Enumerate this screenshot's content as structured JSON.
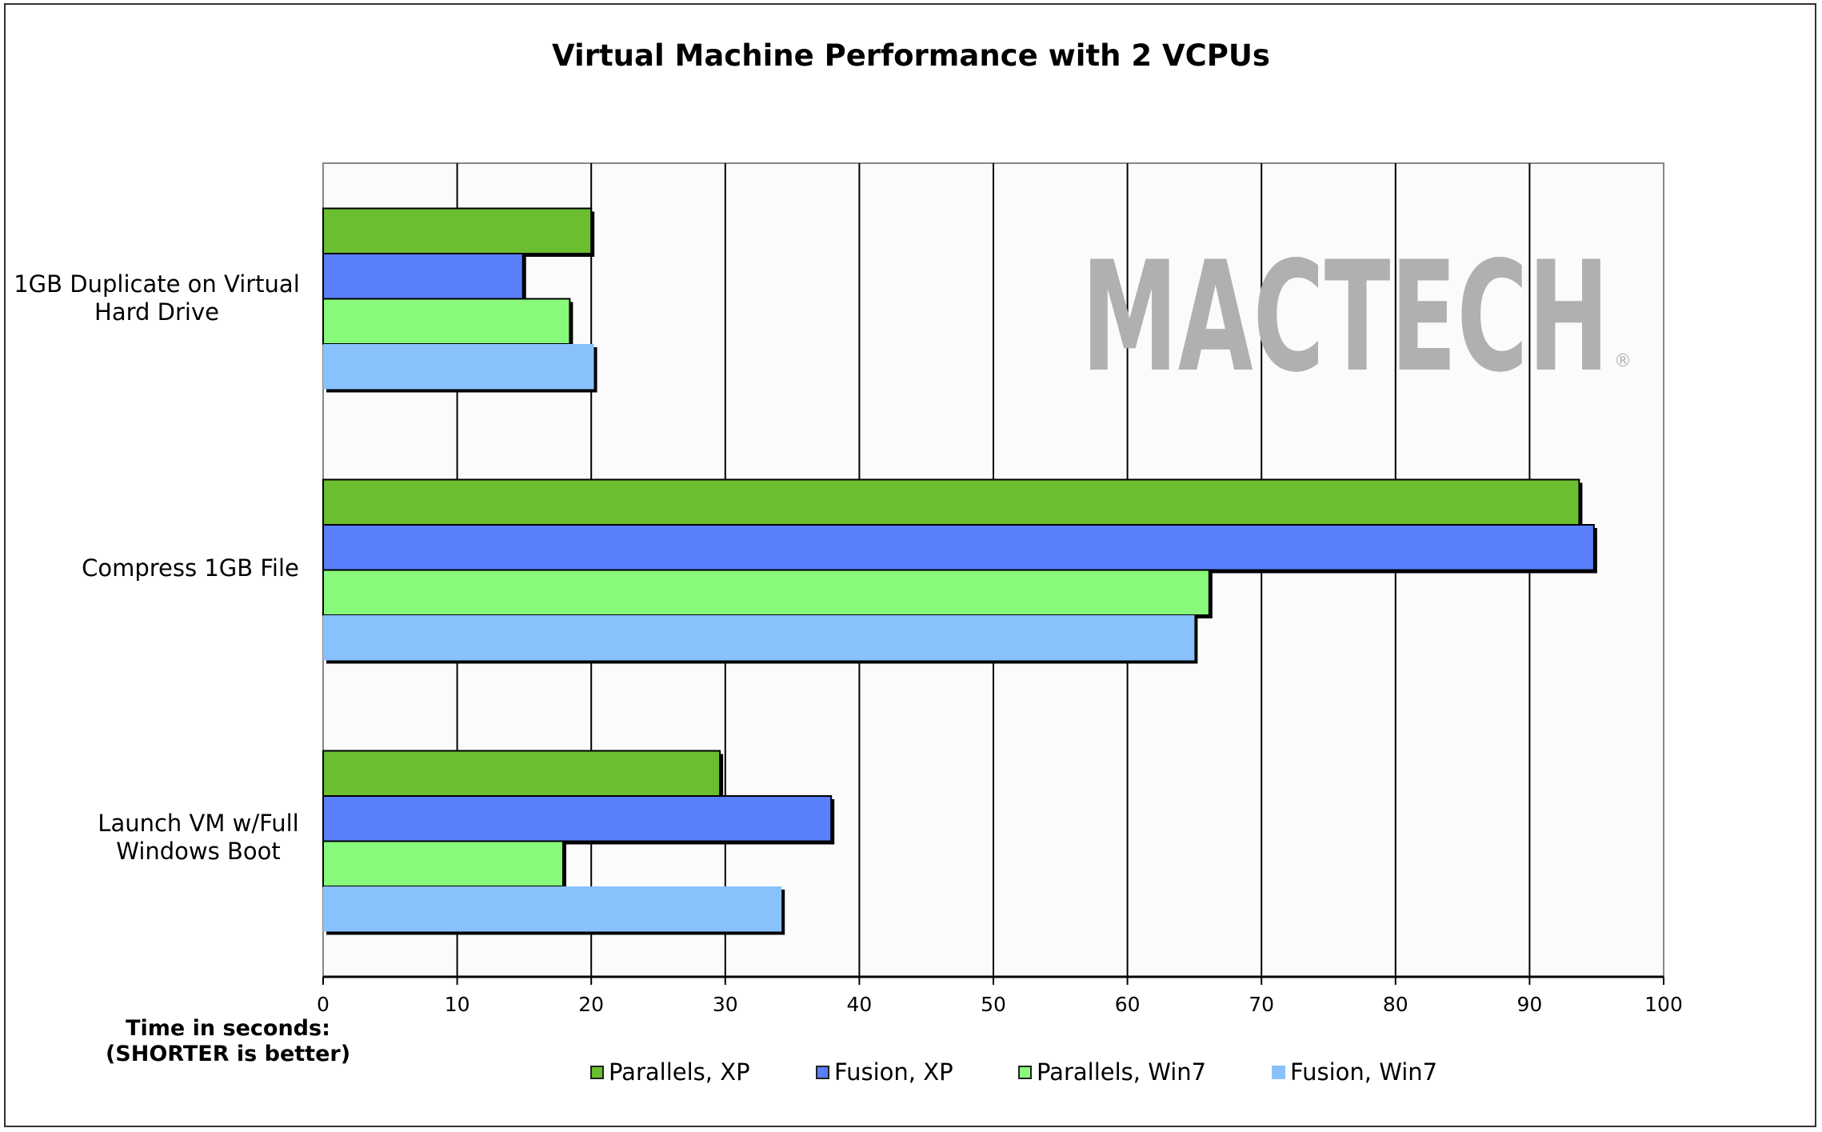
{
  "chart_data": {
    "type": "bar",
    "orientation": "horizontal",
    "title": "Virtual Machine Performance with 2 VCPUs",
    "xlabel": "Time in seconds:\n(SHORTER is better)",
    "xlabel_lines": [
      "Time in seconds:",
      "(SHORTER is better)"
    ],
    "ylabel": "",
    "xlim": [
      0,
      100
    ],
    "xticks": [
      0,
      10,
      20,
      30,
      40,
      50,
      60,
      70,
      80,
      90,
      100
    ],
    "grid": true,
    "categories": [
      {
        "lines": [
          "1GB Duplicate on Virtual",
          "Hard Drive"
        ]
      },
      {
        "lines": [
          "Compress 1GB File"
        ]
      },
      {
        "lines": [
          "Launch VM w/Full",
          "Windows Boot"
        ]
      }
    ],
    "series": [
      {
        "name": "Parallels, XP",
        "color": "#6bbf2f",
        "values": [
          20.0,
          93.7,
          29.6
        ]
      },
      {
        "name": "Fusion, XP",
        "color": "#597ffd",
        "values": [
          14.9,
          94.8,
          37.9
        ]
      },
      {
        "name": "Parallels, Win7",
        "color": "#89f97b",
        "values": [
          18.4,
          66.1,
          17.9
        ]
      },
      {
        "name": "Fusion, Win7",
        "color": "#88c1fb",
        "values": [
          20.2,
          65.0,
          34.2
        ]
      }
    ],
    "legend_position": "bottom"
  },
  "watermark": {
    "text": "MACTECH",
    "mark": "®",
    "color": "#b0b0b0"
  }
}
